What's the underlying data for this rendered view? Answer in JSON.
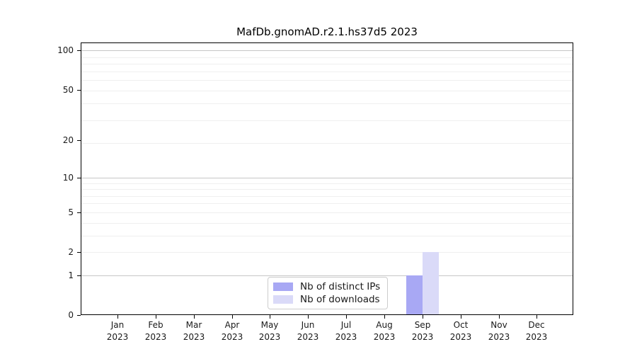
{
  "title": "MafDb.gnomAD.r2.1.hs37d5 2023",
  "chart_data": {
    "type": "bar",
    "title": "MafDb.gnomAD.r2.1.hs37d5 2023",
    "categories": [
      "Jan 2023",
      "Feb 2023",
      "Mar 2023",
      "Apr 2023",
      "May 2023",
      "Jun 2023",
      "Jul 2023",
      "Aug 2023",
      "Sep 2023",
      "Oct 2023",
      "Nov 2023",
      "Dec 2023"
    ],
    "x_tick_months": [
      "Jan",
      "Feb",
      "Mar",
      "Apr",
      "May",
      "Jun",
      "Jul",
      "Aug",
      "Sep",
      "Oct",
      "Nov",
      "Dec"
    ],
    "x_tick_year": "2023",
    "series": [
      {
        "name": "Nb of distinct IPs",
        "color": "#a8a8f4",
        "values": [
          0,
          0,
          0,
          0,
          0,
          0,
          0,
          0,
          1,
          0,
          0,
          0
        ]
      },
      {
        "name": "Nb of downloads",
        "color": "#dadaf8",
        "values": [
          0,
          0,
          0,
          0,
          0,
          0,
          0,
          0,
          2,
          0,
          0,
          0
        ]
      }
    ],
    "xlabel": "",
    "ylabel": "",
    "y_axis": {
      "scale": "log1p",
      "tick_values": [
        0,
        1,
        2,
        5,
        10,
        20,
        50,
        100
      ],
      "tick_labels": [
        "0",
        "1",
        "2",
        "5",
        "10",
        "20",
        "50",
        "100"
      ],
      "ylim": [
        0,
        115
      ],
      "major_gridline_values": [
        1,
        10,
        100
      ],
      "minor_gridline_values": [
        2,
        3,
        4,
        5,
        6,
        7,
        8,
        9,
        19,
        29,
        39,
        49,
        59,
        69,
        79,
        89
      ]
    },
    "legend": {
      "entries": [
        "Nb of distinct IPs",
        "Nb of downloads"
      ],
      "position": "lower center"
    },
    "grid": "horizontal",
    "colors": {
      "background": "#ffffff",
      "axis": "#000000",
      "text": "#1a1a1a",
      "major_grid": "#c6c6c6",
      "minor_grid": "#efefef",
      "legend_border": "#cccccc"
    }
  }
}
